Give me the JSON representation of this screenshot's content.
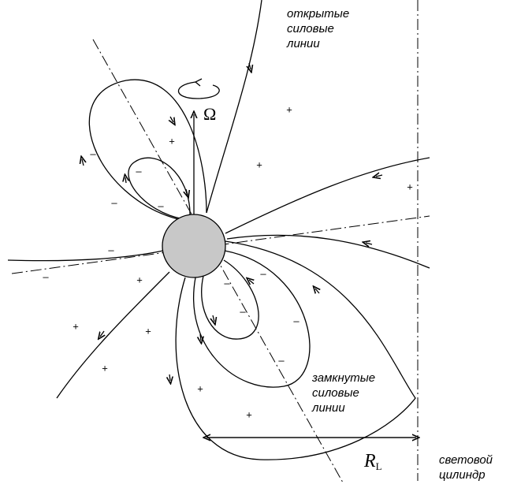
{
  "labels": {
    "open_lines": [
      "открытые",
      "силовые",
      "линии"
    ],
    "closed_lines": [
      "замкнутые",
      "силовые",
      "линии"
    ],
    "omega": "Ω",
    "radius": "R",
    "radius_sub": "L",
    "light_cylinder": [
      "световой",
      "цилиндр"
    ]
  },
  "signs": [
    {
      "text": "+",
      "pos": "a"
    },
    {
      "text": "+",
      "pos": "b"
    },
    {
      "text": "+",
      "pos": "c"
    },
    {
      "text": "+",
      "pos": "d"
    },
    {
      "text": "+",
      "pos": "e"
    },
    {
      "text": "+",
      "pos": "f"
    },
    {
      "text": "+",
      "pos": "g"
    },
    {
      "text": "+",
      "pos": "h"
    },
    {
      "text": "+",
      "pos": "i"
    },
    {
      "text": "+",
      "pos": "j"
    },
    {
      "text": "–",
      "pos": "k"
    },
    {
      "text": "–",
      "pos": "l"
    },
    {
      "text": "–",
      "pos": "m"
    },
    {
      "text": "–",
      "pos": "n"
    },
    {
      "text": "–",
      "pos": "o"
    },
    {
      "text": "–",
      "pos": "p"
    },
    {
      "text": "–",
      "pos": "q"
    },
    {
      "text": "–",
      "pos": "r"
    },
    {
      "text": "–",
      "pos": "s"
    },
    {
      "text": "–",
      "pos": "t"
    },
    {
      "text": "–",
      "pos": "u"
    }
  ]
}
